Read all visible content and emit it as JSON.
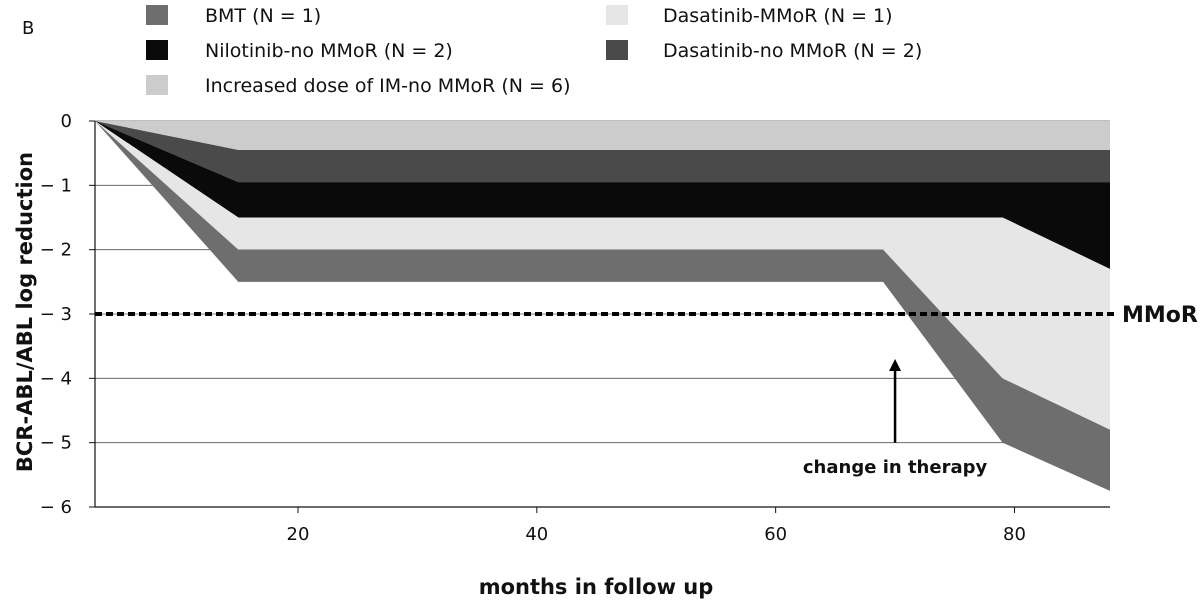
{
  "panel_label": "B",
  "chart_data": {
    "type": "area",
    "xlabel": "months in follow up",
    "ylabel": "BCR-ABL/ABL log reduction",
    "xlim": [
      3,
      88
    ],
    "ylim": [
      -6,
      0
    ],
    "x_ticks": [
      20,
      40,
      60,
      80
    ],
    "y_ticks": [
      0,
      -1,
      -2,
      -3,
      -4,
      -5,
      -6
    ],
    "y_tick_labels": [
      "0",
      "− 1",
      "− 2",
      "− 3",
      "− 4",
      "− 5",
      "− 6"
    ],
    "grid": "horizontal",
    "legend": [
      {
        "label": "BMT (N = 1)",
        "color": "#6e6e6e"
      },
      {
        "label": "Dasatinib-MMoR (N = 1)",
        "color": "#e6e6e6"
      },
      {
        "label": "Nilotinib-no MMoR (N = 2)",
        "color": "#0a0a0a"
      },
      {
        "label": "Dasatinib-no MMoR  (N = 2)",
        "color": "#4a4a4a"
      },
      {
        "label": "Increased dose of IM-no MMoR (N = 6)",
        "color": "#cccccc"
      }
    ],
    "series": [
      {
        "name": "Increased dose of IM-no MMoR (N = 6)",
        "color": "#cccccc",
        "top": [
          [
            3,
            0
          ],
          [
            88,
            0
          ]
        ],
        "bottom": [
          [
            3,
            0
          ],
          [
            15,
            -0.45
          ],
          [
            88,
            -0.45
          ]
        ]
      },
      {
        "name": "Dasatinib-no MMoR  (N = 2)",
        "color": "#4a4a4a",
        "top": [
          [
            3,
            0
          ],
          [
            15,
            -0.45
          ],
          [
            88,
            -0.45
          ]
        ],
        "bottom": [
          [
            3,
            0
          ],
          [
            15,
            -0.95
          ],
          [
            88,
            -0.95
          ]
        ]
      },
      {
        "name": "Nilotinib-no MMoR (N = 2)",
        "color": "#0a0a0a",
        "top": [
          [
            3,
            0
          ],
          [
            15,
            -0.95
          ],
          [
            88,
            -0.95
          ]
        ],
        "bottom": [
          [
            3,
            0
          ],
          [
            15,
            -1.5
          ],
          [
            79,
            -1.5
          ],
          [
            88,
            -2.3
          ]
        ]
      },
      {
        "name": "Dasatinib-MMoR (N = 1)",
        "color": "#e6e6e6",
        "top": [
          [
            3,
            0
          ],
          [
            15,
            -1.5
          ],
          [
            79,
            -1.5
          ],
          [
            88,
            -2.3
          ]
        ],
        "bottom": [
          [
            3,
            0
          ],
          [
            15,
            -2.0
          ],
          [
            69,
            -2.0
          ],
          [
            79,
            -4.0
          ],
          [
            88,
            -4.8
          ]
        ]
      },
      {
        "name": "BMT (N = 1)",
        "color": "#6e6e6e",
        "top": [
          [
            3,
            0
          ],
          [
            15,
            -2.0
          ],
          [
            69,
            -2.0
          ],
          [
            79,
            -4.0
          ],
          [
            88,
            -4.8
          ]
        ],
        "bottom": [
          [
            3,
            0
          ],
          [
            15,
            -2.5
          ],
          [
            69,
            -2.5
          ],
          [
            79,
            -5.0
          ],
          [
            88,
            -5.75
          ]
        ]
      }
    ],
    "reference_line": {
      "y": -3,
      "label": "MMoR",
      "style": "dashed"
    },
    "annotations": [
      {
        "text": "change in therapy",
        "arrow_x": 70,
        "arrow_from_y": -5.0,
        "arrow_to_y": -3.7
      }
    ]
  }
}
